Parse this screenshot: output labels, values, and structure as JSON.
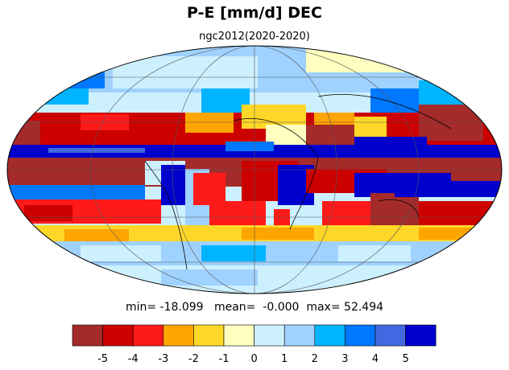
{
  "title": "P-E [mm/d] DEC",
  "subtitle": "ngc2012(2020-2020)",
  "stats": {
    "min": "-18.099",
    "mean": "-0.000",
    "max": "52.494"
  },
  "stats_labels": {
    "min": "min=",
    "mean": "mean=",
    "max": "max="
  },
  "colorbar": {
    "colors": [
      "#a52a2a",
      "#cd0000",
      "#ff1a1a",
      "#ffa500",
      "#ffd728",
      "#ffffc0",
      "#cdf0ff",
      "#9fd2ff",
      "#00b4ff",
      "#0078ff",
      "#4169e1",
      "#0000cd"
    ],
    "tick_labels": [
      "-5",
      "-4",
      "-3",
      "-2",
      "-1",
      "0",
      "1",
      "2",
      "3",
      "4",
      "5"
    ],
    "tick_values": [
      -5,
      -4,
      -3,
      -2,
      -1,
      0,
      1,
      2,
      3,
      4,
      5
    ]
  }
}
